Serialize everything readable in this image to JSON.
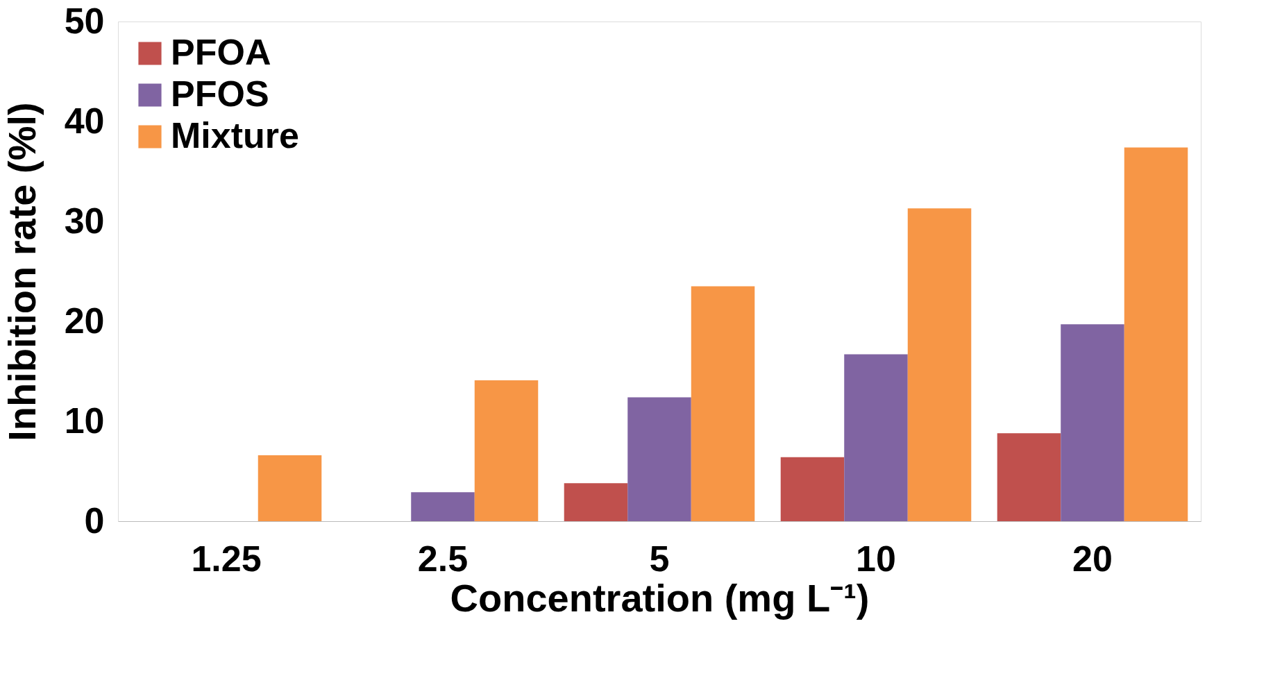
{
  "chart_data": {
    "type": "bar",
    "xlabel": "Concentration (mg L⁻¹)",
    "ylabel": "Inhibition rate (%l)",
    "categories": [
      "1.25",
      "2.5",
      "5",
      "10",
      "20"
    ],
    "series": [
      {
        "name": "PFOA",
        "color": "#c0504d",
        "values": [
          0,
          0,
          3.8,
          6.4,
          8.8
        ]
      },
      {
        "name": "PFOS",
        "color": "#8064a2",
        "values": [
          0,
          2.9,
          12.4,
          16.7,
          19.7
        ]
      },
      {
        "name": "Mixture",
        "color": "#f79646",
        "values": [
          6.6,
          14.1,
          23.5,
          31.3,
          37.4
        ]
      }
    ],
    "ylim": [
      0,
      50
    ],
    "yticks": [
      0,
      10,
      20,
      30,
      40,
      50
    ],
    "grid": false,
    "legend": "top left"
  }
}
